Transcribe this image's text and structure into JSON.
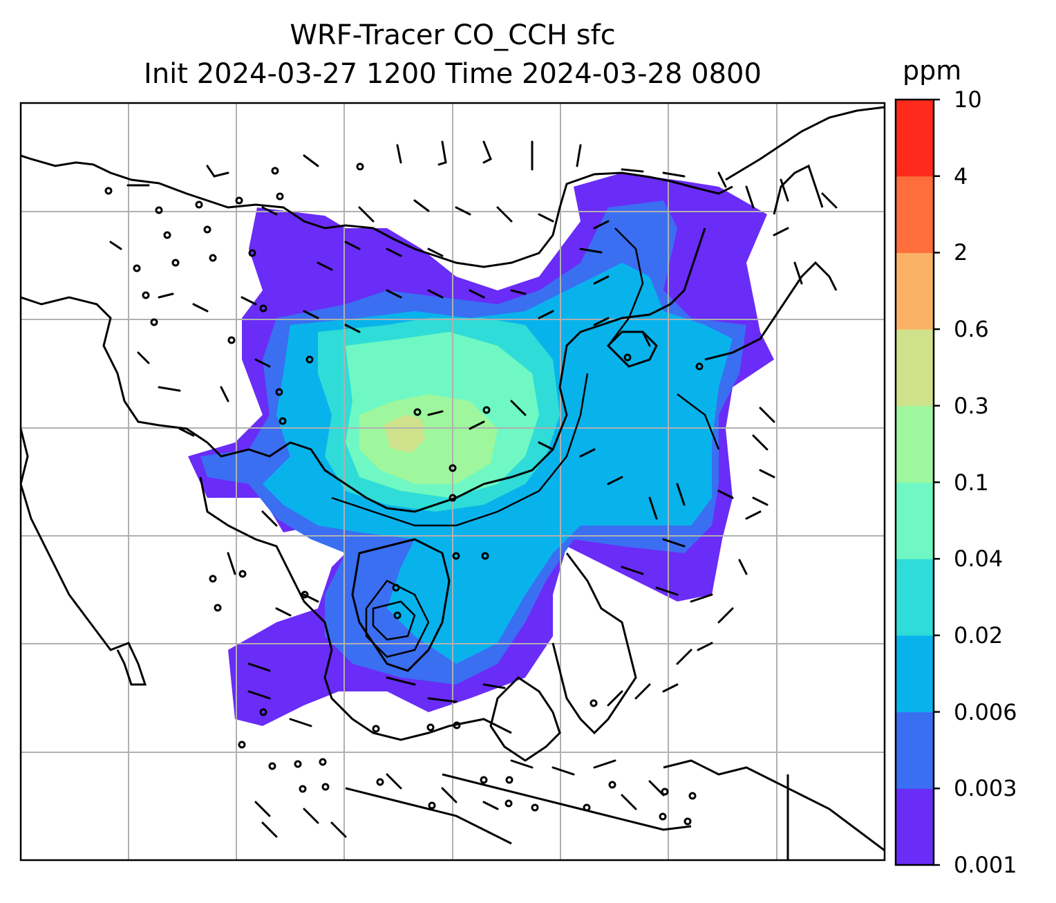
{
  "title": {
    "line1": "WRF-Tracer CO_CCH sfc",
    "line2": "Init 2024-03-27 1200 Time 2024-03-28 0800"
  },
  "colorbar": {
    "unit": "ppm",
    "levels": [
      "0.001",
      "0.003",
      "0.006",
      "0.02",
      "0.04",
      "0.1",
      "0.3",
      "0.6",
      "2",
      "4",
      "10"
    ],
    "colors": [
      "#6a2cf7",
      "#3a6ff2",
      "#08b3ec",
      "#2fdcd7",
      "#6ff8c3",
      "#9ef79c",
      "#cfe28b",
      "#fcb266",
      "#fe6e3c",
      "#fe2a1c"
    ]
  },
  "map": {
    "gridlines": true,
    "coastlines": true,
    "overlay": "wind barbs"
  }
}
